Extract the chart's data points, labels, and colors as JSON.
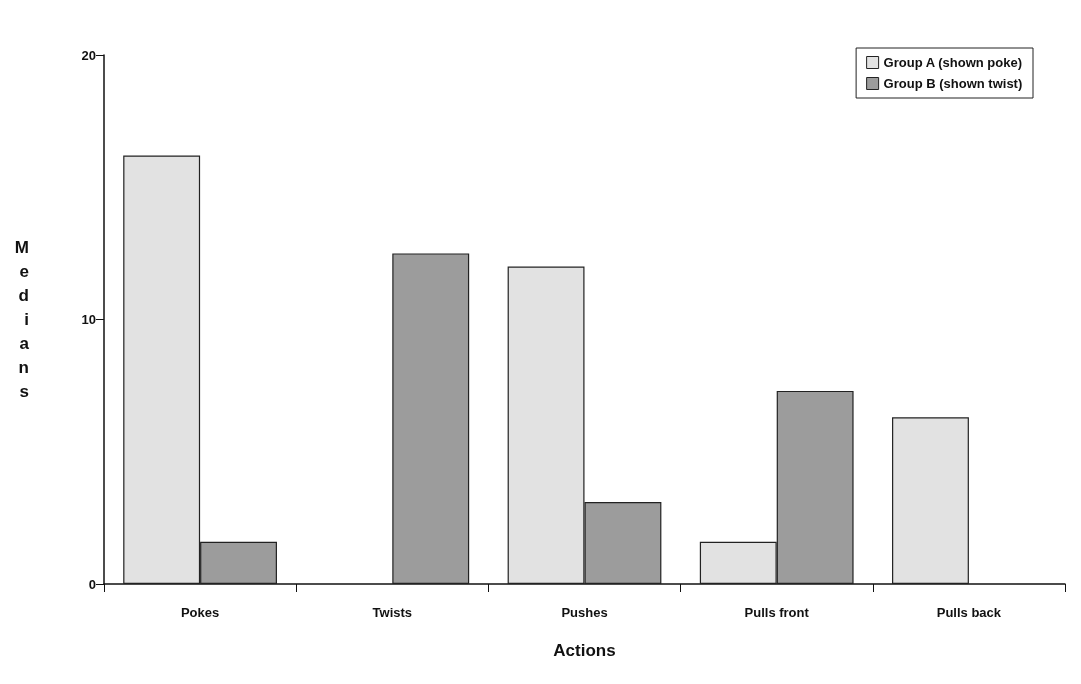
{
  "chart_data": {
    "type": "bar",
    "xlabel": "Actions",
    "ylabel": "Medians",
    "categories": [
      "Pokes",
      "Twists",
      "Pushes",
      "Pulls front",
      "Pulls back"
    ],
    "series": [
      {
        "name": "Group A (shown poke)",
        "color": "#e2e2e2",
        "values": [
          16.2,
          null,
          12,
          1.6,
          6.3
        ]
      },
      {
        "name": "Group B (shown twist)",
        "color": "#9c9c9c",
        "values": [
          1.6,
          12.5,
          3.1,
          7.3,
          null
        ]
      }
    ],
    "ylim": [
      0,
      20
    ],
    "yticks": [
      0,
      10,
      20
    ],
    "grid": false,
    "legend": "top right"
  }
}
